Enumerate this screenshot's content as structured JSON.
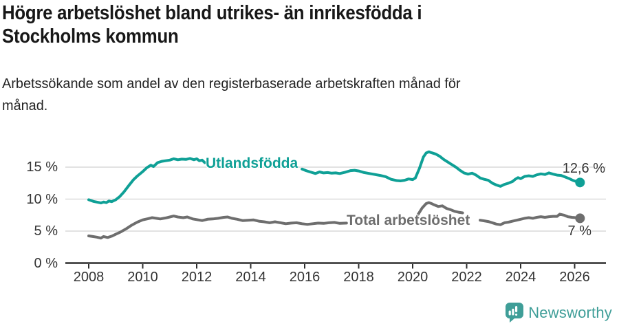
{
  "header": {
    "title_lines": [
      "Högre arbetslöshet bland utrikes- än inrikesfödda i",
      "Stockholms kommun"
    ],
    "subtitle_lines": [
      "Arbetssökande som andel av den registerbaserade arbetskraften månad för",
      "månad."
    ]
  },
  "footer": {
    "brand": "Newsworthy",
    "brand_color": "#3f9e98"
  },
  "colors": {
    "foreign_born_line": "#0fa096",
    "total_line": "#6e6e6e",
    "grid": "#d9d9d9",
    "axis": "#2d2d2d",
    "text": "#333333"
  },
  "chart_data": {
    "type": "line",
    "title": "Högre arbetslöshet bland utrikes- än inrikesfödda i Stockholms kommun",
    "subtitle": "Arbetssökande som andel av den registerbaserade arbetskraften månad för månad.",
    "unit": "%",
    "grid": "horizontal-only",
    "legend_position": "inline-labels-on-lines",
    "ylim": [
      0,
      18.5
    ],
    "xlim_years": [
      2007.1,
      2027.2
    ],
    "grid_values": [
      5,
      10,
      15
    ],
    "y_ticks": [
      {
        "value": 15,
        "label": "15 %"
      },
      {
        "value": 10,
        "label": "10 %"
      },
      {
        "value": 5,
        "label": "5 %"
      },
      {
        "value": 0,
        "label": "0 %"
      }
    ],
    "x_ticks": [
      {
        "year": 2008,
        "label": "2008"
      },
      {
        "year": 2010,
        "label": "2010"
      },
      {
        "year": 2012,
        "label": "2012"
      },
      {
        "year": 2014,
        "label": "2014"
      },
      {
        "year": 2016,
        "label": "2016"
      },
      {
        "year": 2018,
        "label": "2018"
      },
      {
        "year": 2020,
        "label": "2020"
      },
      {
        "year": 2022,
        "label": "2022"
      },
      {
        "year": 2024,
        "label": "2024"
      },
      {
        "year": 2026,
        "label": "2026"
      }
    ],
    "series": [
      {
        "name": "Utlandsfödda",
        "color": "#0fa096",
        "end_label": "12,6 %",
        "end_value": 12.6,
        "segments": [
          [
            [
              2008.0,
              9.9
            ],
            [
              2008.17,
              9.65
            ],
            [
              2008.33,
              9.5
            ],
            [
              2008.45,
              9.4
            ],
            [
              2008.55,
              9.55
            ],
            [
              2008.65,
              9.45
            ],
            [
              2008.75,
              9.7
            ],
            [
              2008.85,
              9.6
            ],
            [
              2009.0,
              9.9
            ],
            [
              2009.15,
              10.4
            ],
            [
              2009.3,
              11.1
            ],
            [
              2009.5,
              12.2
            ],
            [
              2009.65,
              13.0
            ],
            [
              2009.8,
              13.6
            ],
            [
              2010.0,
              14.3
            ],
            [
              2010.15,
              14.9
            ],
            [
              2010.3,
              15.3
            ],
            [
              2010.4,
              15.1
            ],
            [
              2010.55,
              15.7
            ],
            [
              2010.7,
              15.9
            ],
            [
              2010.85,
              16.0
            ],
            [
              2011.0,
              16.1
            ],
            [
              2011.15,
              16.3
            ],
            [
              2011.3,
              16.15
            ],
            [
              2011.45,
              16.25
            ],
            [
              2011.6,
              16.2
            ],
            [
              2011.75,
              16.35
            ],
            [
              2011.9,
              16.15
            ],
            [
              2012.0,
              16.3
            ],
            [
              2012.1,
              16.0
            ],
            [
              2012.2,
              16.1
            ],
            [
              2012.3,
              15.7
            ]
          ],
          [
            [
              2015.9,
              14.7
            ],
            [
              2016.05,
              14.45
            ],
            [
              2016.2,
              14.25
            ],
            [
              2016.4,
              14.0
            ],
            [
              2016.55,
              14.25
            ],
            [
              2016.7,
              14.1
            ],
            [
              2016.85,
              14.15
            ],
            [
              2017.0,
              14.05
            ],
            [
              2017.15,
              14.1
            ],
            [
              2017.3,
              14.0
            ],
            [
              2017.5,
              14.2
            ],
            [
              2017.7,
              14.45
            ],
            [
              2017.85,
              14.5
            ],
            [
              2018.0,
              14.4
            ],
            [
              2018.2,
              14.15
            ],
            [
              2018.4,
              14.0
            ],
            [
              2018.6,
              13.85
            ],
            [
              2018.8,
              13.7
            ],
            [
              2019.0,
              13.5
            ],
            [
              2019.2,
              13.1
            ],
            [
              2019.4,
              12.9
            ],
            [
              2019.55,
              12.85
            ],
            [
              2019.7,
              12.95
            ],
            [
              2019.85,
              13.15
            ],
            [
              2020.0,
              13.05
            ],
            [
              2020.1,
              13.3
            ],
            [
              2020.25,
              14.8
            ],
            [
              2020.4,
              16.6
            ],
            [
              2020.5,
              17.2
            ],
            [
              2020.6,
              17.4
            ],
            [
              2020.7,
              17.25
            ],
            [
              2020.85,
              17.05
            ],
            [
              2021.0,
              16.7
            ],
            [
              2021.15,
              16.2
            ],
            [
              2021.3,
              15.8
            ],
            [
              2021.45,
              15.4
            ],
            [
              2021.6,
              15.0
            ],
            [
              2021.75,
              14.5
            ],
            [
              2021.9,
              14.1
            ],
            [
              2022.05,
              13.9
            ],
            [
              2022.2,
              14.05
            ],
            [
              2022.35,
              13.75
            ],
            [
              2022.5,
              13.3
            ],
            [
              2022.65,
              13.1
            ],
            [
              2022.8,
              12.95
            ],
            [
              2022.95,
              12.5
            ],
            [
              2023.1,
              12.2
            ],
            [
              2023.25,
              12.0
            ],
            [
              2023.4,
              12.3
            ],
            [
              2023.55,
              12.5
            ],
            [
              2023.7,
              12.75
            ],
            [
              2023.8,
              13.1
            ],
            [
              2023.9,
              13.35
            ],
            [
              2024.0,
              13.2
            ],
            [
              2024.15,
              13.55
            ],
            [
              2024.3,
              13.65
            ],
            [
              2024.45,
              13.55
            ],
            [
              2024.6,
              13.8
            ],
            [
              2024.75,
              13.95
            ],
            [
              2024.9,
              13.85
            ],
            [
              2025.05,
              14.1
            ],
            [
              2025.2,
              13.9
            ],
            [
              2025.35,
              13.75
            ],
            [
              2025.5,
              13.7
            ],
            [
              2025.65,
              13.45
            ],
            [
              2025.8,
              13.2
            ],
            [
              2025.95,
              12.9
            ],
            [
              2026.1,
              12.7
            ],
            [
              2026.2,
              12.6
            ]
          ]
        ]
      },
      {
        "name": "Total arbetslöshet",
        "color": "#6e6e6e",
        "end_label": "7 %",
        "end_value": 7,
        "segments": [
          [
            [
              2008.0,
              4.25
            ],
            [
              2008.15,
              4.15
            ],
            [
              2008.3,
              4.05
            ],
            [
              2008.45,
              3.9
            ],
            [
              2008.55,
              4.15
            ],
            [
              2008.7,
              4.0
            ],
            [
              2008.85,
              4.2
            ],
            [
              2009.0,
              4.5
            ],
            [
              2009.2,
              4.9
            ],
            [
              2009.4,
              5.4
            ],
            [
              2009.6,
              5.95
            ],
            [
              2009.8,
              6.4
            ],
            [
              2010.0,
              6.75
            ],
            [
              2010.2,
              6.95
            ],
            [
              2010.35,
              7.1
            ],
            [
              2010.5,
              7.0
            ],
            [
              2010.65,
              6.9
            ],
            [
              2010.85,
              7.05
            ],
            [
              2011.0,
              7.2
            ],
            [
              2011.15,
              7.35
            ],
            [
              2011.3,
              7.2
            ],
            [
              2011.5,
              7.1
            ],
            [
              2011.65,
              7.2
            ],
            [
              2011.85,
              6.9
            ],
            [
              2012.0,
              6.8
            ],
            [
              2012.2,
              6.65
            ],
            [
              2012.4,
              6.85
            ],
            [
              2012.6,
              6.9
            ],
            [
              2012.8,
              7.0
            ],
            [
              2013.0,
              7.15
            ],
            [
              2013.15,
              7.2
            ],
            [
              2013.3,
              7.0
            ],
            [
              2013.5,
              6.85
            ],
            [
              2013.7,
              6.65
            ],
            [
              2013.9,
              6.7
            ],
            [
              2014.1,
              6.75
            ],
            [
              2014.3,
              6.55
            ],
            [
              2014.5,
              6.45
            ],
            [
              2014.7,
              6.3
            ],
            [
              2014.9,
              6.45
            ],
            [
              2015.1,
              6.3
            ],
            [
              2015.3,
              6.15
            ],
            [
              2015.5,
              6.25
            ],
            [
              2015.7,
              6.3
            ],
            [
              2015.9,
              6.15
            ],
            [
              2016.1,
              6.05
            ],
            [
              2016.3,
              6.15
            ],
            [
              2016.5,
              6.25
            ],
            [
              2016.7,
              6.2
            ],
            [
              2016.9,
              6.3
            ],
            [
              2017.1,
              6.35
            ],
            [
              2017.3,
              6.2
            ],
            [
              2017.55,
              6.25
            ]
          ],
          [
            [
              2020.2,
              7.6
            ],
            [
              2020.35,
              8.6
            ],
            [
              2020.5,
              9.3
            ],
            [
              2020.6,
              9.45
            ],
            [
              2020.7,
              9.3
            ],
            [
              2020.8,
              9.1
            ],
            [
              2020.95,
              8.85
            ],
            [
              2021.1,
              8.95
            ],
            [
              2021.25,
              8.55
            ],
            [
              2021.4,
              8.35
            ],
            [
              2021.55,
              8.1
            ],
            [
              2021.7,
              7.95
            ],
            [
              2021.85,
              7.85
            ]
          ],
          [
            [
              2022.5,
              6.7
            ],
            [
              2022.65,
              6.6
            ],
            [
              2022.8,
              6.5
            ],
            [
              2022.95,
              6.3
            ],
            [
              2023.1,
              6.1
            ],
            [
              2023.25,
              6.0
            ],
            [
              2023.4,
              6.3
            ],
            [
              2023.55,
              6.4
            ],
            [
              2023.7,
              6.55
            ],
            [
              2023.85,
              6.7
            ],
            [
              2024.0,
              6.85
            ],
            [
              2024.15,
              7.0
            ],
            [
              2024.3,
              7.1
            ],
            [
              2024.45,
              7.0
            ],
            [
              2024.6,
              7.15
            ],
            [
              2024.75,
              7.25
            ],
            [
              2024.9,
              7.15
            ],
            [
              2025.05,
              7.25
            ],
            [
              2025.2,
              7.3
            ],
            [
              2025.35,
              7.3
            ],
            [
              2025.45,
              7.65
            ],
            [
              2025.6,
              7.5
            ],
            [
              2025.75,
              7.25
            ],
            [
              2025.9,
              7.15
            ],
            [
              2026.05,
              7.1
            ],
            [
              2026.2,
              7.0
            ]
          ]
        ]
      }
    ]
  }
}
